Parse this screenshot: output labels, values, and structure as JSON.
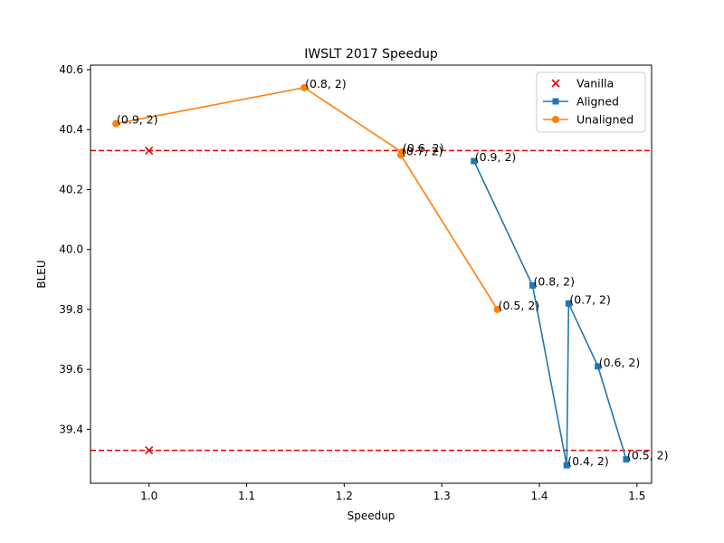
{
  "chart_data": {
    "type": "line",
    "title": "IWSLT 2017 Speedup",
    "xlabel": "Speedup",
    "ylabel": "BLEU",
    "xlim": [
      0.94,
      1.515
    ],
    "ylim": [
      39.22,
      40.615
    ],
    "xticks": [
      "1.0",
      "1.1",
      "1.2",
      "1.3",
      "1.4",
      "1.5"
    ],
    "yticks": [
      "39.4",
      "39.6",
      "39.8",
      "40.0",
      "40.2",
      "40.4",
      "40.6"
    ],
    "grid": false,
    "legend_position": "top-right",
    "reference_lines": [
      {
        "type": "horizontal",
        "y": 40.33,
        "style": "dashed",
        "color": "#e60000"
      },
      {
        "type": "horizontal",
        "y": 39.33,
        "style": "dashed",
        "color": "#e60000"
      }
    ],
    "series": [
      {
        "name": "Vanilla",
        "marker": "x",
        "color": "#e60000",
        "line": false,
        "points": [
          {
            "x": 1.0,
            "y": 40.33,
            "label": ""
          },
          {
            "x": 1.0,
            "y": 39.33,
            "label": ""
          }
        ]
      },
      {
        "name": "Aligned",
        "marker": "square",
        "color": "#1f77b4",
        "line": true,
        "points": [
          {
            "x": 1.333,
            "y": 40.295,
            "label": "(0.9, 2)"
          },
          {
            "x": 1.393,
            "y": 39.88,
            "label": "(0.8, 2)"
          },
          {
            "x": 1.428,
            "y": 39.28,
            "label": "(0.4, 2)"
          },
          {
            "x": 1.43,
            "y": 39.82,
            "label": "(0.7, 2)"
          },
          {
            "x": 1.46,
            "y": 39.61,
            "label": "(0.6, 2)"
          },
          {
            "x": 1.489,
            "y": 39.3,
            "label": "(0.5, 2)"
          }
        ]
      },
      {
        "name": "Unaligned",
        "marker": "circle",
        "color": "#ff7f0e",
        "line": true,
        "points": [
          {
            "x": 0.966,
            "y": 40.42,
            "label": "(0.9, 2)"
          },
          {
            "x": 1.159,
            "y": 40.54,
            "label": "(0.8, 2)"
          },
          {
            "x": 1.259,
            "y": 40.325,
            "label": "(0.6, 2)"
          },
          {
            "x": 1.258,
            "y": 40.315,
            "label": "(0.7, 2)"
          },
          {
            "x": 1.357,
            "y": 39.8,
            "label": "(0.5, 2)"
          }
        ]
      }
    ]
  }
}
